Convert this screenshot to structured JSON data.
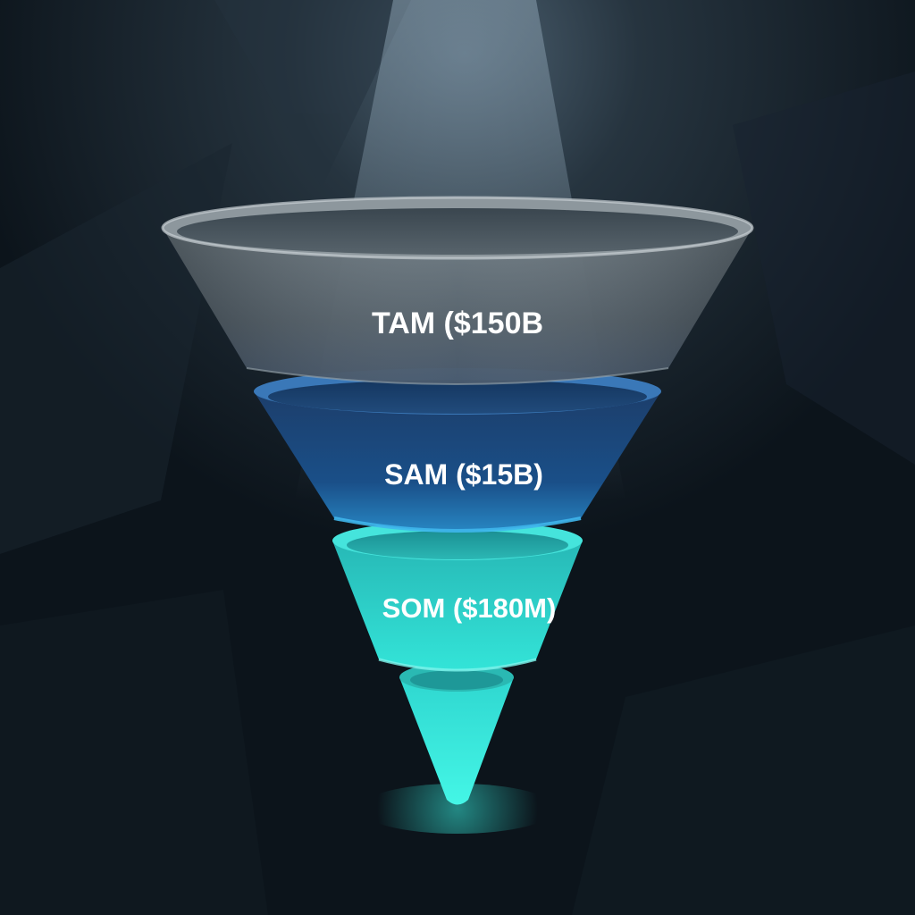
{
  "funnel": {
    "tiers": [
      {
        "label": "TAM ($150B"
      },
      {
        "label": "SAM ($15B)"
      },
      {
        "label": "SOM ($180M)"
      }
    ]
  },
  "colors": {
    "background": "#0d151c",
    "tam": "#5c6a74",
    "sam": "#1d5c9a",
    "som": "#2fd9cf",
    "tip": "#3af0e0"
  }
}
